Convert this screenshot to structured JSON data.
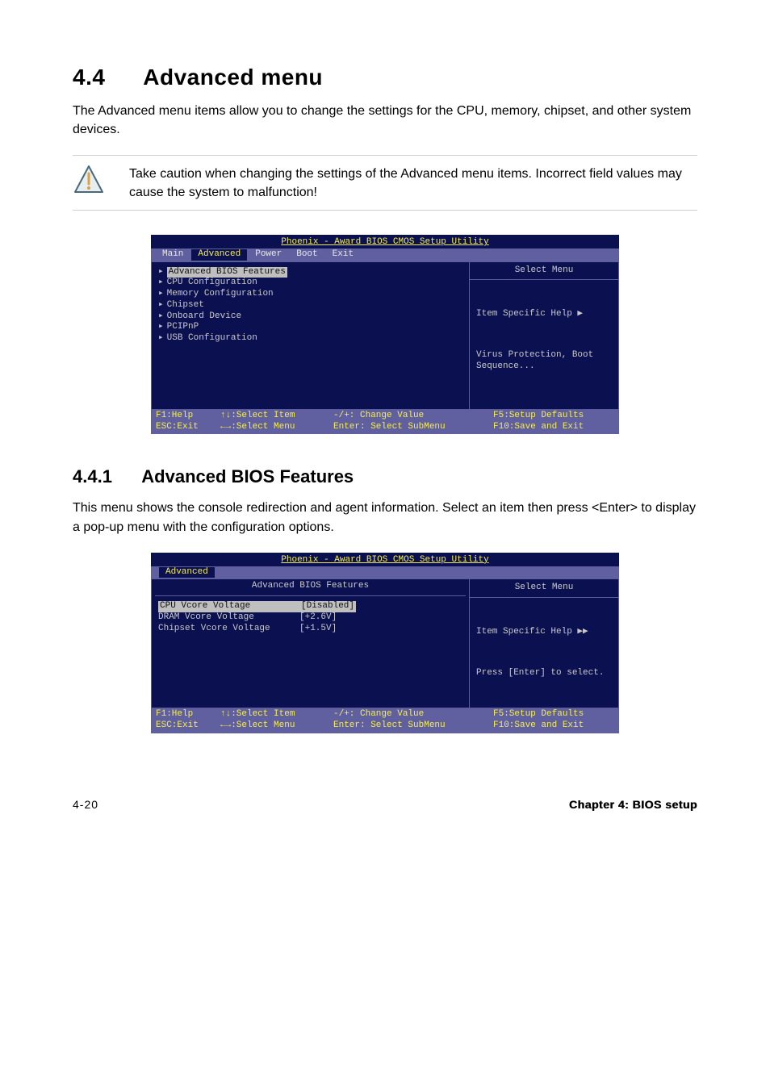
{
  "section": {
    "number": "4.4",
    "title": "Advanced menu",
    "intro": "The Advanced menu items allow you to change the settings for the CPU, memory, chipset, and other system devices."
  },
  "caution": {
    "text": "Take caution when changing the settings of the Advanced menu items. Incorrect field values may cause the system to malfunction!",
    "triangle_stroke": "#4a6a7a",
    "triangle_fill": "#e6eef0",
    "bang_color": "#e0a040"
  },
  "bios_common": {
    "title": "Phoenix - Award BIOS CMOS Setup Utility",
    "footer": {
      "f1": "F1:Help",
      "sel_item": "↑↓:Select Item",
      "change": "-/+: Change Value",
      "f5": "F5:Setup Defaults",
      "esc": "ESC:Exit",
      "sel_menu": "←→:Select Menu",
      "enter": "Enter: Select SubMenu",
      "f10": "F10:Save and Exit"
    },
    "right_title": "Select Menu",
    "bg": "#0b1150",
    "highlight_bg": "#bfbfbf",
    "title_color": "#f5ed4c",
    "footer_bg": "#6060a0"
  },
  "bios1": {
    "tabs": [
      "Main",
      "Advanced",
      "Power",
      "Boot",
      "Exit"
    ],
    "active_tab": "Advanced",
    "left_items": [
      "Advanced BIOS Features",
      "CPU Configuration",
      "Memory Configuration",
      "Chipset",
      "Onboard Device",
      "PCIPnP",
      "USB Configuration"
    ],
    "highlighted_index": 0,
    "help_line1": "Item Specific Help ▶",
    "help_line2": "Virus Protection, Boot Sequence..."
  },
  "subsection": {
    "number": "4.4.1",
    "title": "Advanced BIOS Features",
    "intro": "This menu shows the console redirection and agent information. Select an item then press <Enter> to display a pop-up menu with the configuration options."
  },
  "bios2": {
    "subtab": "Advanced",
    "left_title": "Advanced BIOS Features",
    "rows": [
      {
        "k": "CPU Vcore Voltage",
        "v": "[Disabled]",
        "hl": true
      },
      {
        "k": "DRAM Vcore Voltage",
        "v": "[+2.6V]",
        "hl": false
      },
      {
        "k": "Chipset Vcore Voltage",
        "v": "[+1.5V]",
        "hl": false
      }
    ],
    "help_line1": "Item Specific Help ▶▶",
    "help_line2": "Press [Enter] to select."
  },
  "page_footer": {
    "left": "4-20",
    "right": "Chapter 4: BIOS setup"
  }
}
